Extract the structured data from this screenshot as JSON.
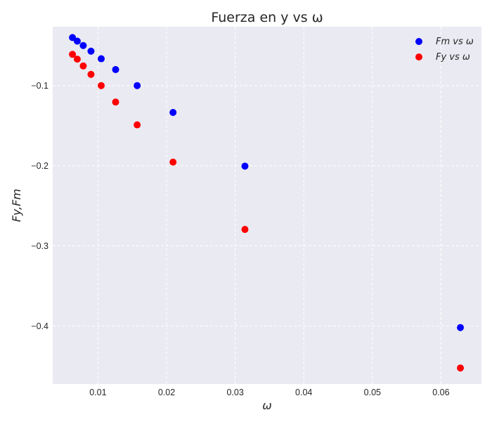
{
  "chart_data": {
    "type": "scatter",
    "title": "Fuerza en y vs ω",
    "xlabel": "ω",
    "ylabel": "Fy,Fm",
    "xlim": [
      0.0034,
      0.0659
    ],
    "ylim": [
      -0.4725,
      -0.0265
    ],
    "xticks": [
      0.01,
      0.02,
      0.03,
      0.04,
      0.05,
      0.06
    ],
    "xtick_labels": [
      "0.01",
      "0.02",
      "0.03",
      "0.04",
      "0.05",
      "0.06"
    ],
    "yticks": [
      -0.1,
      -0.2,
      -0.3,
      -0.4
    ],
    "ytick_labels": [
      "−0.1",
      "−0.2",
      "−0.3",
      "−0.4"
    ],
    "grid": true,
    "legend_position": "top-right",
    "series": [
      {
        "name": "Fm vs ω",
        "color": "#0000ff",
        "x": [
          0.00628,
          0.00698,
          0.00785,
          0.00898,
          0.01047,
          0.01257,
          0.01571,
          0.02094,
          0.03142,
          0.06283
        ],
        "y": [
          -0.04,
          -0.0445,
          -0.05,
          -0.057,
          -0.0665,
          -0.08,
          -0.1,
          -0.1335,
          -0.2005,
          -0.402
        ]
      },
      {
        "name": "Fy vs ω",
        "color": "#ff0000",
        "x": [
          0.00628,
          0.00698,
          0.00785,
          0.00898,
          0.01047,
          0.01257,
          0.01571,
          0.02094,
          0.03142,
          0.06283
        ],
        "y": [
          -0.061,
          -0.067,
          -0.0755,
          -0.086,
          -0.1,
          -0.1205,
          -0.149,
          -0.1955,
          -0.2795,
          -0.4525
        ]
      }
    ]
  }
}
